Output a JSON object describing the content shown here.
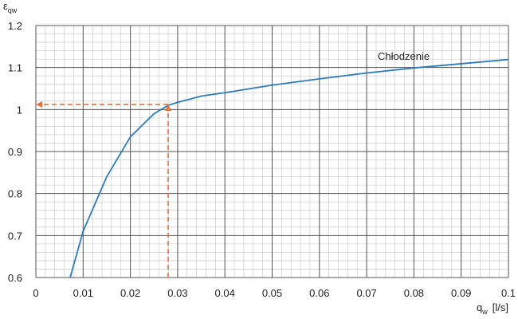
{
  "chart_data": {
    "type": "line",
    "x_label_symbol": "q",
    "x_label_sub": "w",
    "x_label_unit": "[l/s]",
    "y_label_symbol": "ε",
    "y_label_sub": "qw",
    "xlim": [
      0,
      0.1
    ],
    "ylim": [
      0.6,
      1.2
    ],
    "xticks": [
      0,
      0.01,
      0.02,
      0.03,
      0.04,
      0.05,
      0.06,
      0.07,
      0.08,
      0.09,
      0.1
    ],
    "yticks": [
      0.6,
      0.7,
      0.8,
      0.9,
      1,
      1.1,
      1.2
    ],
    "grid": true,
    "minor_grid": true,
    "series": [
      {
        "name": "Chłodzenie",
        "color": "#2b7bbf",
        "x": [
          0.00725,
          0.01,
          0.015,
          0.02,
          0.025,
          0.028,
          0.03,
          0.035,
          0.04,
          0.05,
          0.06,
          0.07,
          0.08,
          0.09,
          0.1
        ],
        "values": [
          0.6,
          0.71,
          0.84,
          0.935,
          0.99,
          1.01,
          1.017,
          1.032,
          1.04,
          1.058,
          1.073,
          1.087,
          1.099,
          1.109,
          1.119
        ]
      }
    ],
    "guide": {
      "x": 0.028,
      "y": 1.012,
      "color": "#e8703a"
    }
  }
}
